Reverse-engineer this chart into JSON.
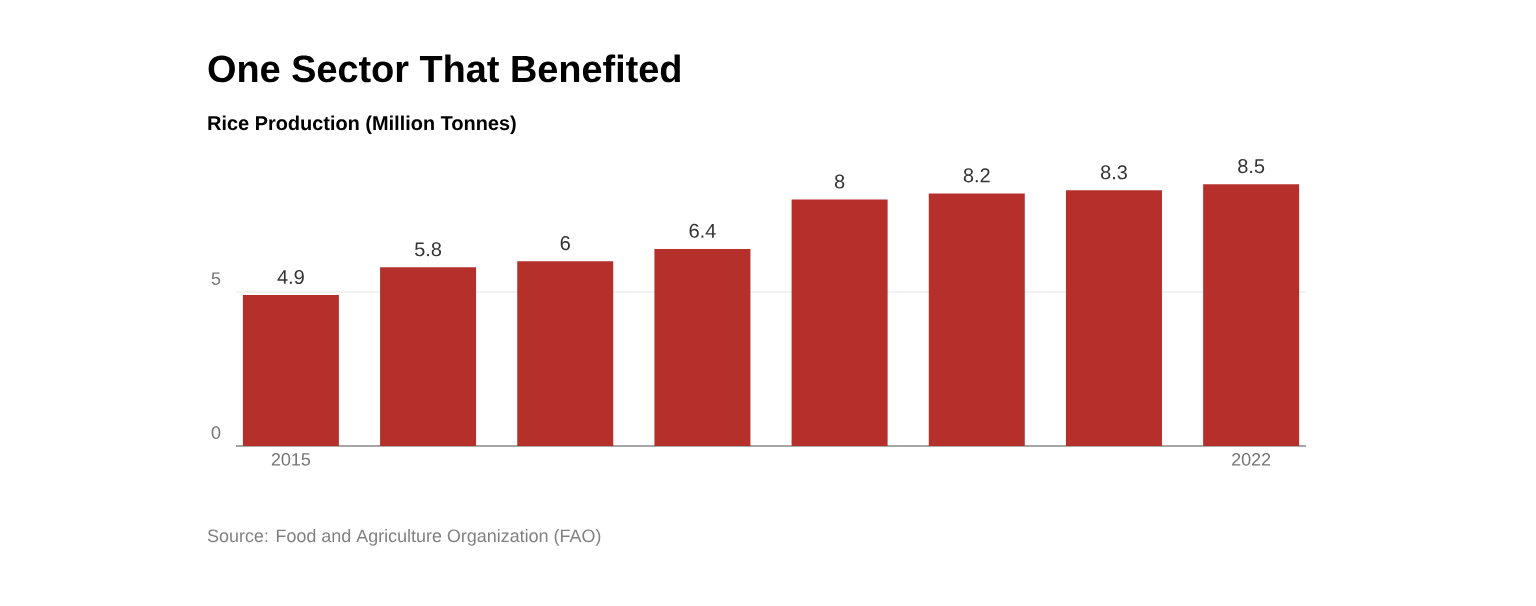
{
  "chart_data": {
    "type": "bar",
    "title": "One Sector That Benefited",
    "subtitle": "Rice Production (Million Tonnes)",
    "categories": [
      "2015",
      null,
      null,
      null,
      null,
      null,
      null,
      "2022"
    ],
    "values": [
      4.9,
      5.8,
      6,
      6.4,
      8,
      8.2,
      8.3,
      8.5
    ],
    "color": "#b5302a",
    "ylim": [
      0,
      8.5
    ],
    "yticks": [
      0,
      5
    ],
    "grid": "y",
    "data_labels": true,
    "annotations": [
      "Source: Food and Agriculture Organization (FAO)"
    ]
  }
}
